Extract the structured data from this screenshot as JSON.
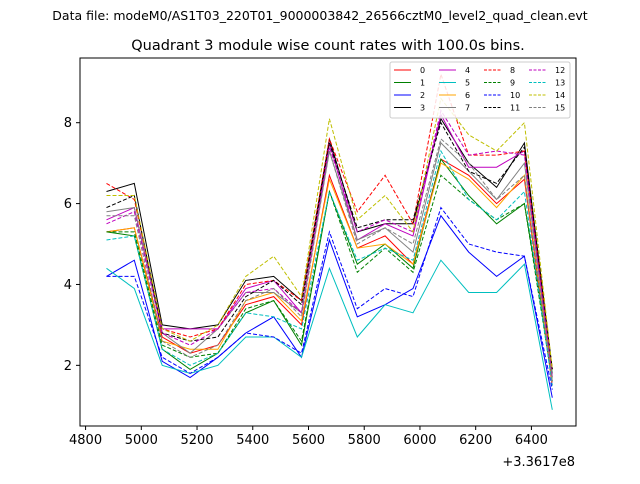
{
  "file_label": "Data file: modeM0/AS1T03_220T01_9000003842_26566cztM0_level2_quad_clean.evt",
  "chart_data": {
    "type": "line",
    "title": "Quadrant 3 module wise count rates with 100.0s bins.",
    "xlabel": "",
    "ylabel": "",
    "x_offset_label": "+3.3617e8",
    "xlim": [
      4780,
      6560
    ],
    "ylim": [
      0.5,
      9.6
    ],
    "xticks": [
      4800,
      5000,
      5200,
      5400,
      5600,
      5800,
      6000,
      6200,
      6400
    ],
    "yticks": [
      2,
      4,
      6,
      8
    ],
    "x": [
      4875,
      4975,
      5075,
      5175,
      5275,
      5375,
      5475,
      5575,
      5675,
      5775,
      5875,
      5975,
      6075,
      6175,
      6275,
      6375,
      6475
    ],
    "legend_position": "top-right",
    "series": [
      {
        "name": "0",
        "color": "#ff0000",
        "dash": "solid",
        "values": [
          5.3,
          5.4,
          2.7,
          2.3,
          2.5,
          3.5,
          3.7,
          3.0,
          6.7,
          4.9,
          5.2,
          4.5,
          7.1,
          6.7,
          6.0,
          6.6,
          1.5
        ]
      },
      {
        "name": "1",
        "color": "#008000",
        "dash": "solid",
        "values": [
          5.3,
          5.2,
          2.4,
          1.9,
          2.3,
          3.3,
          3.6,
          2.5,
          6.3,
          4.5,
          5.0,
          4.4,
          7.1,
          6.2,
          5.5,
          6.0,
          1.8
        ]
      },
      {
        "name": "2",
        "color": "#0000ff",
        "dash": "solid",
        "values": [
          4.2,
          4.6,
          2.1,
          1.7,
          2.2,
          2.8,
          3.2,
          2.2,
          5.1,
          3.2,
          3.5,
          3.9,
          5.7,
          4.8,
          4.2,
          4.7,
          1.2
        ]
      },
      {
        "name": "3",
        "color": "#000000",
        "dash": "solid",
        "values": [
          6.3,
          6.5,
          3.0,
          2.9,
          3.0,
          4.1,
          4.2,
          3.6,
          7.6,
          5.3,
          5.5,
          5.5,
          8.1,
          7.0,
          6.4,
          7.5,
          1.9
        ]
      },
      {
        "name": "4",
        "color": "#bf00bf",
        "dash": "solid",
        "values": [
          5.6,
          5.9,
          2.9,
          2.9,
          2.9,
          3.9,
          4.1,
          3.3,
          7.5,
          5.1,
          5.5,
          5.2,
          8.2,
          6.9,
          6.9,
          7.3,
          1.7
        ]
      },
      {
        "name": "5",
        "color": "#00bfbf",
        "dash": "solid",
        "values": [
          4.4,
          3.9,
          2.0,
          1.8,
          2.0,
          2.7,
          2.7,
          2.2,
          4.4,
          2.7,
          3.5,
          3.3,
          4.6,
          3.8,
          3.8,
          4.5,
          0.9
        ]
      },
      {
        "name": "6",
        "color": "#ffa500",
        "dash": "solid",
        "values": [
          5.3,
          5.4,
          2.6,
          2.4,
          2.4,
          3.6,
          3.8,
          3.1,
          6.6,
          4.9,
          5.0,
          4.5,
          7.0,
          6.6,
          5.9,
          6.7,
          1.6
        ]
      },
      {
        "name": "7",
        "color": "#808080",
        "dash": "solid",
        "values": [
          5.8,
          5.9,
          2.8,
          2.3,
          2.9,
          3.8,
          3.8,
          3.3,
          7.3,
          5.1,
          5.4,
          4.8,
          7.5,
          6.8,
          6.1,
          7.0,
          1.7
        ]
      },
      {
        "name": "8",
        "color": "#ff0000",
        "dash": "dashed",
        "values": [
          6.5,
          6.1,
          2.9,
          2.7,
          2.9,
          4.0,
          4.1,
          3.6,
          7.6,
          5.8,
          6.7,
          5.5,
          9.2,
          7.2,
          7.2,
          7.3,
          1.9
        ]
      },
      {
        "name": "9",
        "color": "#008000",
        "dash": "dashed",
        "values": [
          5.3,
          5.3,
          2.5,
          2.2,
          2.3,
          3.4,
          3.6,
          2.6,
          6.3,
          4.3,
          4.9,
          4.3,
          6.7,
          6.1,
          5.6,
          6.0,
          1.6
        ]
      },
      {
        "name": "10",
        "color": "#0000ff",
        "dash": "dashed",
        "values": [
          4.2,
          4.2,
          2.2,
          1.8,
          2.2,
          2.8,
          2.7,
          2.3,
          5.3,
          3.4,
          3.9,
          3.7,
          5.9,
          5.0,
          4.8,
          4.7,
          1.4
        ]
      },
      {
        "name": "11",
        "color": "#000000",
        "dash": "dashed",
        "values": [
          5.9,
          6.2,
          2.8,
          2.6,
          2.7,
          3.7,
          4.1,
          3.5,
          7.5,
          5.4,
          5.6,
          5.6,
          8.0,
          6.8,
          6.5,
          7.4,
          1.9
        ]
      },
      {
        "name": "12",
        "color": "#bf00bf",
        "dash": "dashed",
        "values": [
          5.5,
          5.8,
          2.8,
          2.5,
          2.9,
          3.8,
          3.9,
          3.3,
          7.4,
          5.3,
          5.6,
          5.3,
          8.3,
          7.2,
          7.3,
          7.2,
          1.7
        ]
      },
      {
        "name": "13",
        "color": "#00bfbf",
        "dash": "dashed",
        "values": [
          5.1,
          5.2,
          2.4,
          2.0,
          2.3,
          3.3,
          3.2,
          2.9,
          6.3,
          4.6,
          4.9,
          4.6,
          7.3,
          6.1,
          5.6,
          6.3,
          1.5
        ]
      },
      {
        "name": "14",
        "color": "#bfbf00",
        "dash": "dashed",
        "values": [
          6.2,
          6.2,
          2.9,
          2.6,
          3.0,
          4.2,
          4.7,
          3.7,
          8.1,
          5.6,
          6.2,
          5.3,
          8.6,
          7.7,
          7.3,
          8.0,
          1.9
        ]
      },
      {
        "name": "15",
        "color": "#808080",
        "dash": "dashed",
        "values": [
          5.7,
          5.7,
          2.6,
          2.2,
          2.5,
          3.6,
          3.9,
          3.2,
          7.3,
          5.0,
          5.4,
          5.0,
          7.6,
          7.0,
          6.1,
          6.7,
          1.6
        ]
      }
    ]
  }
}
